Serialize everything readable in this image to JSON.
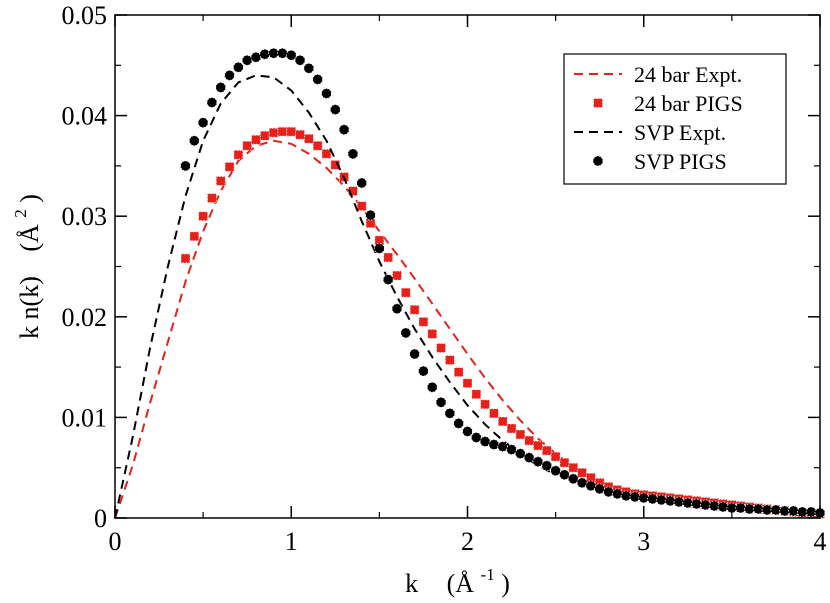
{
  "chart_data": {
    "type": "line",
    "title": "",
    "xlabel": "k",
    "xlabel_unit": "(Å",
    "xlabel_unit_sup": "-1",
    "xlabel_unit_end": ")",
    "ylabel": "k n(k)",
    "ylabel_unit": "(Å",
    "ylabel_unit_sup": "2",
    "ylabel_unit_end": ")",
    "xlim": [
      0,
      4
    ],
    "ylim": [
      0,
      0.05
    ],
    "xticks": [
      "0",
      "1",
      "2",
      "3",
      "4"
    ],
    "yticks": [
      "0",
      "0.01",
      "0.02",
      "0.03",
      "0.04",
      "0.05"
    ],
    "grid": false,
    "legend_position": "top-right",
    "series": [
      {
        "name": "24 bar Expt.",
        "kind": "line",
        "dash": "dashed",
        "color": "#e8201a",
        "points": [
          [
            0.0,
            0.0
          ],
          [
            0.1,
            0.0052
          ],
          [
            0.2,
            0.0115
          ],
          [
            0.3,
            0.0175
          ],
          [
            0.4,
            0.0235
          ],
          [
            0.5,
            0.0285
          ],
          [
            0.6,
            0.0325
          ],
          [
            0.7,
            0.0355
          ],
          [
            0.8,
            0.037
          ],
          [
            0.9,
            0.0375
          ],
          [
            1.0,
            0.0372
          ],
          [
            1.1,
            0.0362
          ],
          [
            1.2,
            0.0348
          ],
          [
            1.3,
            0.033
          ],
          [
            1.4,
            0.0309
          ],
          [
            1.5,
            0.0285
          ],
          [
            1.6,
            0.0262
          ],
          [
            1.7,
            0.0238
          ],
          [
            1.8,
            0.0213
          ],
          [
            1.9,
            0.0188
          ],
          [
            2.0,
            0.0163
          ],
          [
            2.1,
            0.0139
          ],
          [
            2.2,
            0.0117
          ],
          [
            2.3,
            0.0097
          ],
          [
            2.4,
            0.0079
          ],
          [
            2.5,
            0.0064
          ],
          [
            2.6,
            0.0051
          ],
          [
            2.7,
            0.004
          ],
          [
            2.8,
            0.0031
          ],
          [
            2.9,
            0.0024
          ],
          [
            3.0,
            0.0019
          ],
          [
            3.2,
            0.0013
          ],
          [
            3.4,
            0.0009
          ],
          [
            3.6,
            0.0006
          ],
          [
            3.8,
            0.0004
          ],
          [
            4.0,
            0.0003
          ]
        ]
      },
      {
        "name": "24 bar PIGS",
        "kind": "marker",
        "marker": "square",
        "color": "#e8201a",
        "points": [
          [
            0.4,
            0.0258
          ],
          [
            0.45,
            0.028
          ],
          [
            0.5,
            0.03
          ],
          [
            0.55,
            0.0318
          ],
          [
            0.6,
            0.0335
          ],
          [
            0.65,
            0.0349
          ],
          [
            0.7,
            0.0361
          ],
          [
            0.75,
            0.037
          ],
          [
            0.8,
            0.0376
          ],
          [
            0.85,
            0.038
          ],
          [
            0.9,
            0.0383
          ],
          [
            0.95,
            0.0384
          ],
          [
            1.0,
            0.0384
          ],
          [
            1.05,
            0.0381
          ],
          [
            1.1,
            0.0377
          ],
          [
            1.15,
            0.037
          ],
          [
            1.2,
            0.0362
          ],
          [
            1.25,
            0.0351
          ],
          [
            1.3,
            0.0339
          ],
          [
            1.35,
            0.0325
          ],
          [
            1.4,
            0.031
          ],
          [
            1.45,
            0.0293
          ],
          [
            1.5,
            0.0276
          ],
          [
            1.55,
            0.0259
          ],
          [
            1.6,
            0.0241
          ],
          [
            1.65,
            0.0224
          ],
          [
            1.7,
            0.0207
          ],
          [
            1.75,
            0.0195
          ],
          [
            1.8,
            0.0183
          ],
          [
            1.85,
            0.0169
          ],
          [
            1.9,
            0.0157
          ],
          [
            1.95,
            0.0145
          ],
          [
            2.0,
            0.0134
          ],
          [
            2.05,
            0.0123
          ],
          [
            2.1,
            0.0113
          ],
          [
            2.15,
            0.0104
          ],
          [
            2.2,
            0.0096
          ],
          [
            2.25,
            0.0089
          ],
          [
            2.3,
            0.0083
          ],
          [
            2.35,
            0.0077
          ],
          [
            2.4,
            0.0072
          ],
          [
            2.45,
            0.0067
          ],
          [
            2.5,
            0.0061
          ],
          [
            2.55,
            0.0055
          ],
          [
            2.6,
            0.005
          ],
          [
            2.65,
            0.0045
          ],
          [
            2.7,
            0.004
          ],
          [
            2.75,
            0.0035
          ],
          [
            2.8,
            0.0031
          ],
          [
            2.85,
            0.0028
          ],
          [
            2.9,
            0.0026
          ],
          [
            2.95,
            0.0024
          ],
          [
            3.0,
            0.0023
          ],
          [
            3.05,
            0.0022
          ],
          [
            3.1,
            0.0021
          ],
          [
            3.15,
            0.002
          ],
          [
            3.2,
            0.0019
          ],
          [
            3.25,
            0.0018
          ],
          [
            3.3,
            0.0017
          ],
          [
            3.35,
            0.0016
          ],
          [
            3.4,
            0.0015
          ],
          [
            3.45,
            0.0014
          ],
          [
            3.5,
            0.0013
          ],
          [
            3.55,
            0.0012
          ],
          [
            3.6,
            0.0011
          ],
          [
            3.65,
            0.001
          ],
          [
            3.7,
            0.0009
          ],
          [
            3.75,
            0.0008
          ],
          [
            3.8,
            0.0007
          ],
          [
            3.85,
            0.0006
          ],
          [
            3.9,
            0.0005
          ],
          [
            3.95,
            0.0005
          ],
          [
            4.0,
            0.0004
          ]
        ]
      },
      {
        "name": "SVP Expt.",
        "kind": "line",
        "dash": "dashed",
        "color": "#000000",
        "points": [
          [
            0.0,
            0.0
          ],
          [
            0.1,
            0.008
          ],
          [
            0.2,
            0.017
          ],
          [
            0.3,
            0.025
          ],
          [
            0.4,
            0.032
          ],
          [
            0.5,
            0.0375
          ],
          [
            0.6,
            0.0412
          ],
          [
            0.7,
            0.0433
          ],
          [
            0.8,
            0.044
          ],
          [
            0.9,
            0.0438
          ],
          [
            1.0,
            0.0425
          ],
          [
            1.1,
            0.0403
          ],
          [
            1.2,
            0.0375
          ],
          [
            1.3,
            0.0338
          ],
          [
            1.4,
            0.0295
          ],
          [
            1.5,
            0.0255
          ],
          [
            1.6,
            0.022
          ],
          [
            1.7,
            0.0188
          ],
          [
            1.8,
            0.016
          ],
          [
            1.9,
            0.0135
          ],
          [
            2.0,
            0.0112
          ],
          [
            2.1,
            0.0093
          ],
          [
            2.2,
            0.0077
          ],
          [
            2.3,
            0.0064
          ],
          [
            2.4,
            0.0052
          ],
          [
            2.5,
            0.0043
          ]
        ]
      },
      {
        "name": "SVP PIGS",
        "kind": "marker",
        "marker": "circle",
        "color": "#000000",
        "points": [
          [
            0.4,
            0.035
          ],
          [
            0.45,
            0.0375
          ],
          [
            0.5,
            0.0393
          ],
          [
            0.55,
            0.0413
          ],
          [
            0.6,
            0.0428
          ],
          [
            0.65,
            0.044
          ],
          [
            0.7,
            0.0448
          ],
          [
            0.75,
            0.0455
          ],
          [
            0.8,
            0.0458
          ],
          [
            0.85,
            0.0461
          ],
          [
            0.9,
            0.0462
          ],
          [
            0.95,
            0.0462
          ],
          [
            1.0,
            0.046
          ],
          [
            1.05,
            0.0455
          ],
          [
            1.1,
            0.0447
          ],
          [
            1.15,
            0.0436
          ],
          [
            1.2,
            0.0422
          ],
          [
            1.25,
            0.0406
          ],
          [
            1.3,
            0.0386
          ],
          [
            1.35,
            0.0362
          ],
          [
            1.4,
            0.0333
          ],
          [
            1.45,
            0.0301
          ],
          [
            1.5,
            0.0268
          ],
          [
            1.55,
            0.0237
          ],
          [
            1.6,
            0.0208
          ],
          [
            1.65,
            0.0184
          ],
          [
            1.7,
            0.0163
          ],
          [
            1.75,
            0.0146
          ],
          [
            1.8,
            0.013
          ],
          [
            1.85,
            0.0115
          ],
          [
            1.9,
            0.0104
          ],
          [
            1.95,
            0.0094
          ],
          [
            2.0,
            0.0086
          ],
          [
            2.05,
            0.008
          ],
          [
            2.1,
            0.0076
          ],
          [
            2.15,
            0.0073
          ],
          [
            2.2,
            0.0071
          ],
          [
            2.25,
            0.0068
          ],
          [
            2.3,
            0.0064
          ],
          [
            2.35,
            0.006
          ],
          [
            2.4,
            0.0056
          ],
          [
            2.45,
            0.0052
          ],
          [
            2.5,
            0.0047
          ],
          [
            2.55,
            0.0043
          ],
          [
            2.6,
            0.0039
          ],
          [
            2.65,
            0.0035
          ],
          [
            2.7,
            0.0032
          ],
          [
            2.75,
            0.0029
          ],
          [
            2.8,
            0.0026
          ],
          [
            2.85,
            0.0024
          ],
          [
            2.9,
            0.0022
          ],
          [
            2.95,
            0.0021
          ],
          [
            3.0,
            0.002
          ],
          [
            3.05,
            0.0019
          ],
          [
            3.1,
            0.0018
          ],
          [
            3.15,
            0.0017
          ],
          [
            3.2,
            0.0016
          ],
          [
            3.25,
            0.0015
          ],
          [
            3.3,
            0.0014
          ],
          [
            3.35,
            0.0013
          ],
          [
            3.4,
            0.0012
          ],
          [
            3.45,
            0.0011
          ],
          [
            3.5,
            0.001
          ],
          [
            3.55,
            0.001
          ],
          [
            3.6,
            0.0009
          ],
          [
            3.65,
            0.0009
          ],
          [
            3.7,
            0.0008
          ],
          [
            3.75,
            0.0008
          ],
          [
            3.8,
            0.0007
          ],
          [
            3.85,
            0.0007
          ],
          [
            3.9,
            0.0006
          ],
          [
            3.95,
            0.0006
          ],
          [
            4.0,
            0.0005
          ]
        ]
      }
    ]
  }
}
